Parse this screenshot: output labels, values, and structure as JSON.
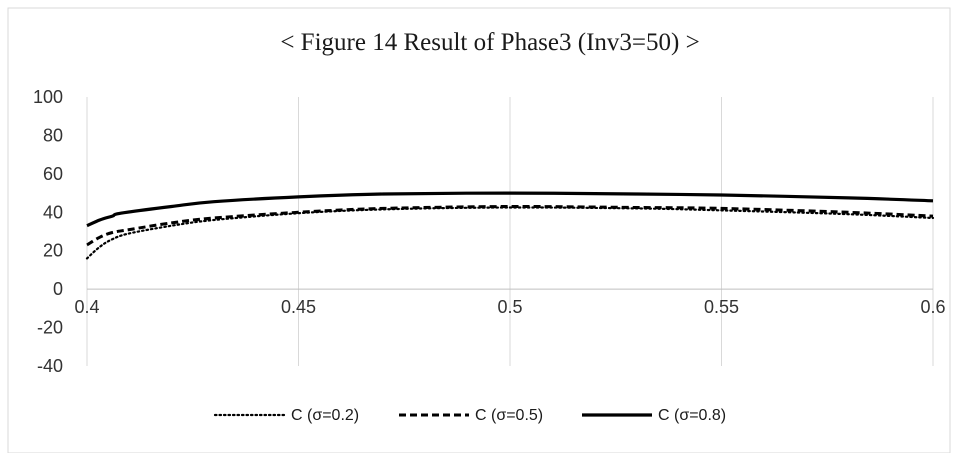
{
  "chart_data": {
    "type": "line",
    "title": "< Figure 14 Result of Phase3 (Inv3=50) >",
    "xlabel": "",
    "ylabel": "",
    "xlim": [
      0.4,
      0.6
    ],
    "ylim": [
      -40,
      100
    ],
    "x_ticks": [
      "0.4",
      "0.45",
      "0.5",
      "0.55",
      "0.6"
    ],
    "y_ticks": [
      "100",
      "80",
      "60",
      "40",
      "20",
      "0",
      "-20",
      "-40"
    ],
    "grid": "vertical",
    "legend_position": "bottom",
    "colors": {
      "series": "#000000",
      "grid": "#d9d9d9",
      "axis": "#bfbfbf",
      "border": "#d9d9d9"
    },
    "series": [
      {
        "name": "C (σ=0.2)",
        "style": "dotted",
        "x": [
          0.4,
          0.403,
          0.406,
          0.41,
          0.42,
          0.43,
          0.45,
          0.47,
          0.5,
          0.53,
          0.55,
          0.58,
          0.6
        ],
        "y": [
          16,
          22,
          26,
          29,
          33,
          36,
          39.5,
          41.5,
          42.5,
          42,
          41,
          39,
          37
        ]
      },
      {
        "name": "C (σ=0.5)",
        "style": "dashed",
        "x": [
          0.4,
          0.403,
          0.406,
          0.41,
          0.42,
          0.43,
          0.45,
          0.47,
          0.5,
          0.53,
          0.55,
          0.58,
          0.6
        ],
        "y": [
          23,
          27,
          29.5,
          31,
          34.5,
          37,
          40,
          42,
          43,
          42.5,
          42,
          40,
          38
        ]
      },
      {
        "name": "C (σ=0.8)",
        "style": "solid",
        "x": [
          0.4,
          0.403,
          0.406,
          0.408,
          0.42,
          0.43,
          0.45,
          0.47,
          0.5,
          0.53,
          0.55,
          0.58,
          0.6
        ],
        "y": [
          33,
          36,
          38,
          39.5,
          43,
          45.5,
          48,
          49.5,
          50,
          49.5,
          49,
          47.5,
          46
        ]
      }
    ]
  }
}
